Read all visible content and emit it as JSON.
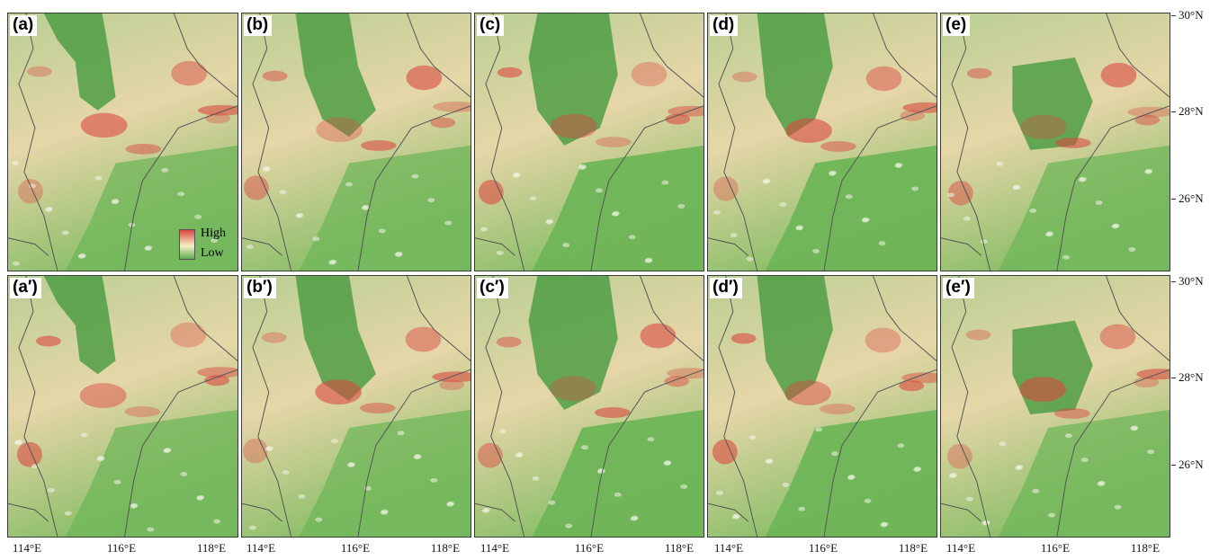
{
  "panels": [
    {
      "id": "a",
      "label": "(a)",
      "variant": 0
    },
    {
      "id": "b",
      "label": "(b)",
      "variant": 1
    },
    {
      "id": "c",
      "label": "(c)",
      "variant": 2
    },
    {
      "id": "d",
      "label": "(d)",
      "variant": 3
    },
    {
      "id": "e",
      "label": "(e)",
      "variant": 4
    },
    {
      "id": "a2",
      "label": "(a′)",
      "variant": 5
    },
    {
      "id": "b2",
      "label": "(b′)",
      "variant": 6
    },
    {
      "id": "c2",
      "label": "(c′)",
      "variant": 7
    },
    {
      "id": "d2",
      "label": "(d′)",
      "variant": 8
    },
    {
      "id": "e2",
      "label": "(e′)",
      "variant": 9
    }
  ],
  "legend": {
    "high": "High",
    "low": "Low"
  },
  "axes": {
    "longitude_ticks": [
      "114°E",
      "116°E",
      "118°E"
    ],
    "latitude_ticks": [
      "30°N",
      "28°N",
      "26°N"
    ]
  },
  "colors": {
    "high": "#d9473f",
    "mid": "#e6d6a8",
    "low": "#5cab4d",
    "border": "#555555"
  }
}
